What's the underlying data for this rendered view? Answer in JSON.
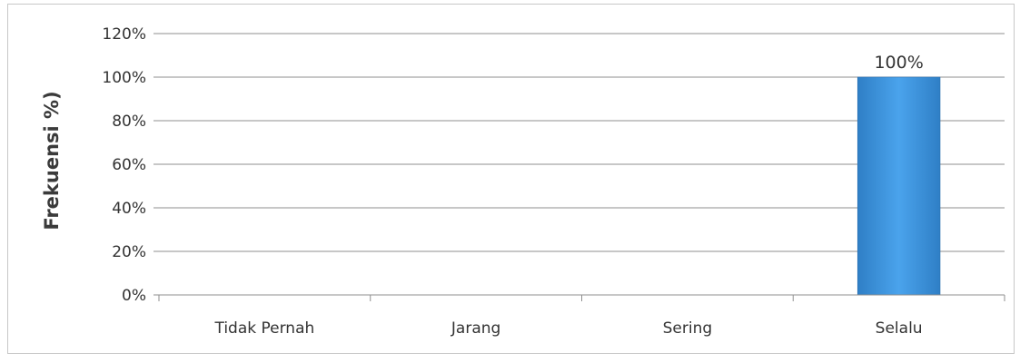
{
  "chart_data": {
    "type": "bar",
    "categories": [
      "Tidak Pernah",
      "Jarang",
      "Sering",
      "Selalu"
    ],
    "values": [
      0,
      0,
      0,
      100
    ],
    "data_labels": [
      "",
      "",
      "",
      "100%"
    ],
    "title": "",
    "xlabel": "",
    "ylabel": "Frekuensi %)",
    "ylim": [
      0,
      120
    ],
    "yticks": [
      "0%",
      "20%",
      "40%",
      "60%",
      "80%",
      "100%",
      "120%"
    ],
    "grid": true,
    "legend": "none",
    "bar_color": "#3a8fd9"
  }
}
